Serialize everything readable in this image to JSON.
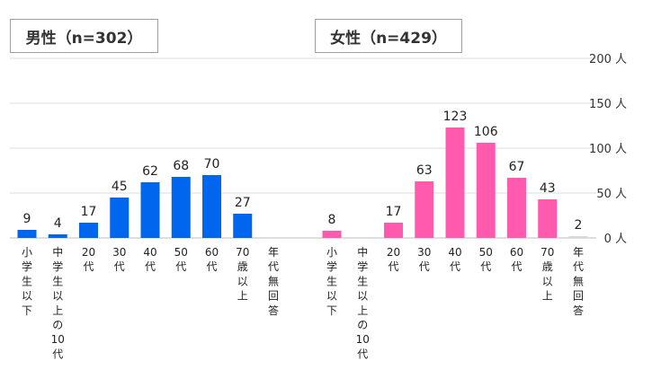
{
  "chart_data": {
    "type": "bar",
    "y_unit": "人",
    "ylim": [
      0,
      200
    ],
    "yticks": [
      0,
      50,
      100,
      150,
      200
    ],
    "grid": true,
    "categories": [
      "小学生以下",
      "中学生以上の10代",
      "20代",
      "30代",
      "40代",
      "50代",
      "60代",
      "70歳以上",
      "年代無回答"
    ],
    "series": [
      {
        "name": "男性（n=302）",
        "color": "#0066ee",
        "values": [
          9,
          4,
          17,
          45,
          62,
          68,
          70,
          27,
          0
        ],
        "labels": [
          "9",
          "4",
          "17",
          "45",
          "62",
          "68",
          "70",
          "27",
          ""
        ]
      },
      {
        "name": "女性（n=429）",
        "color": "#ff5aad",
        "values": [
          8,
          0,
          17,
          63,
          123,
          106,
          67,
          43,
          2
        ],
        "labels": [
          "8",
          "",
          "17",
          "63",
          "123",
          "106",
          "67",
          "43",
          "2"
        ]
      }
    ]
  }
}
